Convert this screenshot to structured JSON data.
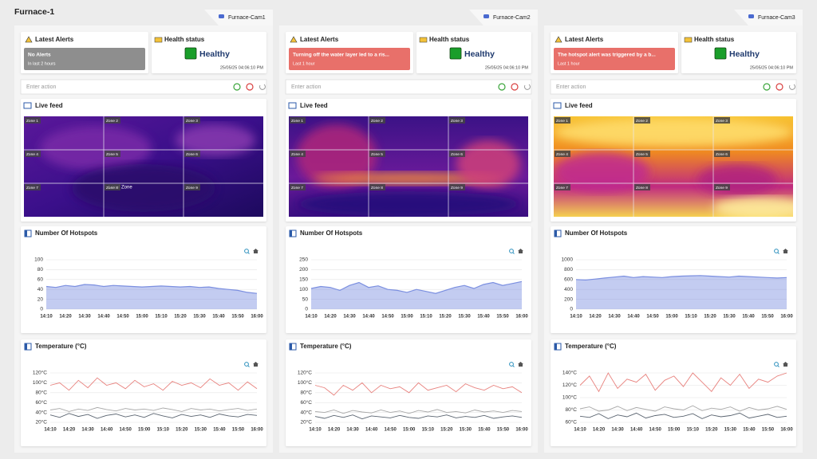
{
  "header": {
    "title": "Furnace-1"
  },
  "labels": {
    "latest_alerts": "Latest Alerts",
    "health_status": "Health status",
    "action_placeholder": "Enter action",
    "live_feed": "Live feed",
    "hotspots": "Number Of Hotspots",
    "temperature": "Temperature (°C)",
    "zones": [
      "Zone 1",
      "Zone 2",
      "Zone 3",
      "Zone 4",
      "Zone 5",
      "Zone 6",
      "Zone 7",
      "Zone 8",
      "Zone 9"
    ]
  },
  "cams": [
    {
      "name": "Furnace-Cam1",
      "alert": {
        "title": "No Alerts",
        "subtitle": "In last 2 hours",
        "color": "#8e8e8e"
      },
      "health": {
        "status": "Healthy",
        "timestamp": "25/05/25 04:06:10 PM",
        "color": "#1a9e2a"
      },
      "overlay": "Local Zone",
      "hotspots": {
        "type": "area",
        "categories": [
          "14:10",
          null,
          "14:20",
          null,
          "14:30",
          null,
          "14:40",
          null,
          "14:50",
          null,
          "15:00",
          null,
          "15:10",
          null,
          "15:20",
          null,
          "15:30",
          null,
          "15:40",
          null,
          "15:50",
          null,
          "16:00"
        ],
        "series": [
          {
            "color": "#7b8fe0",
            "values": [
              46,
              44,
              48,
              46,
              50,
              49,
              46,
              48,
              47,
              46,
              45,
              46,
              47,
              46,
              45,
              46,
              44,
              45,
              42,
              40,
              38,
              34,
              32
            ]
          }
        ],
        "ylim": [
          0,
          100
        ],
        "yticks": [
          0,
          20,
          40,
          60,
          80,
          100
        ],
        "grid": true
      },
      "temperature": {
        "type": "line",
        "categories": [
          "14:10",
          null,
          "14:20",
          null,
          "14:30",
          null,
          "14:40",
          null,
          "14:50",
          null,
          "15:00",
          null,
          "15:10",
          null,
          "15:20",
          null,
          "15:30",
          null,
          "15:40",
          null,
          "15:50",
          null,
          "16:00"
        ],
        "series": [
          {
            "color": "#e8827e",
            "values": [
              95,
              100,
              85,
              105,
              90,
              110,
              95,
              100,
              88,
              105,
              92,
              98,
              85,
              103,
              95,
              100,
              90,
              108,
              95,
              100,
              85,
              102,
              88
            ]
          },
          {
            "color": "#a8a8a8",
            "values": [
              45,
              48,
              42,
              47,
              44,
              50,
              46,
              43,
              48,
              45,
              47,
              44,
              49,
              46,
              42,
              48,
              45,
              47,
              43,
              46,
              48,
              44,
              47
            ]
          },
          {
            "color": "#5a6470",
            "values": [
              35,
              30,
              38,
              32,
              36,
              28,
              34,
              37,
              31,
              35,
              30,
              38,
              33,
              29,
              36,
              32,
              35,
              30,
              37,
              33,
              31,
              36,
              34
            ]
          }
        ],
        "ylim": [
          20,
          120
        ],
        "yticks": [
          {
            "value": 20,
            "label": "20°C"
          },
          {
            "value": 40,
            "label": "40°C"
          },
          {
            "value": 60,
            "label": "60°C"
          },
          {
            "value": 80,
            "label": "80°C"
          },
          {
            "value": 100,
            "label": "100°C"
          },
          {
            "value": 120,
            "label": "120°C"
          }
        ],
        "grid": true
      }
    },
    {
      "name": "Furnace-Cam2",
      "alert": {
        "title": "Turning off the water layer led to a ris...",
        "subtitle": "Last 1 hour",
        "color": "#e8706a"
      },
      "health": {
        "status": "Healthy",
        "timestamp": "25/05/25 04:06:10 PM",
        "color": "#1a9e2a"
      },
      "hotspots": {
        "type": "area",
        "categories": [
          "14:10",
          null,
          "14:20",
          null,
          "14:30",
          null,
          "14:40",
          null,
          "14:50",
          null,
          "15:00",
          null,
          "15:10",
          null,
          "15:20",
          null,
          "15:30",
          null,
          "15:40",
          null,
          "15:50",
          null,
          "16:00"
        ],
        "series": [
          {
            "color": "#7b8fe0",
            "values": [
              105,
              115,
              110,
              95,
              120,
              135,
              110,
              118,
              100,
              95,
              85,
              100,
              90,
              80,
              95,
              110,
              120,
              105,
              125,
              135,
              120,
              130,
              140
            ]
          }
        ],
        "ylim": [
          0,
          250
        ],
        "yticks": [
          0,
          50,
          100,
          150,
          200,
          250
        ],
        "grid": true
      },
      "temperature": {
        "type": "line",
        "categories": [
          "14:10",
          null,
          "14:20",
          null,
          "14:30",
          null,
          "14:40",
          null,
          "14:50",
          null,
          "15:00",
          null,
          "15:10",
          null,
          "15:20",
          null,
          "15:30",
          null,
          "15:40",
          null,
          "15:50",
          null,
          "16:00"
        ],
        "series": [
          {
            "color": "#e8827e",
            "values": [
              95,
              90,
              75,
              95,
              85,
              100,
              80,
              95,
              88,
              92,
              80,
              100,
              85,
              90,
              95,
              82,
              98,
              90,
              85,
              95,
              88,
              92,
              80
            ]
          },
          {
            "color": "#a8a8a8",
            "values": [
              42,
              40,
              45,
              38,
              44,
              41,
              39,
              45,
              40,
              43,
              38,
              44,
              41,
              46,
              40,
              42,
              39,
              45,
              41,
              43,
              40,
              44,
              42
            ]
          },
          {
            "color": "#5a6470",
            "values": [
              32,
              28,
              34,
              30,
              35,
              27,
              33,
              31,
              29,
              34,
              30,
              28,
              33,
              31,
              35,
              29,
              32,
              30,
              34,
              28,
              31,
              33,
              30
            ]
          }
        ],
        "ylim": [
          20,
          120
        ],
        "yticks": [
          {
            "value": 20,
            "label": "20°C"
          },
          {
            "value": 40,
            "label": "40°C"
          },
          {
            "value": 60,
            "label": "60°C"
          },
          {
            "value": 80,
            "label": "80°C"
          },
          {
            "value": 100,
            "label": "100°C"
          },
          {
            "value": 120,
            "label": "120°C"
          }
        ],
        "grid": true
      }
    },
    {
      "name": "Furnace-Cam3",
      "alert": {
        "title": "The hotspot alert was triggered by a b...",
        "subtitle": "Last 1 hour",
        "color": "#e8706a"
      },
      "health": {
        "status": "Healthy",
        "timestamp": "25/05/25 04:06:10 PM",
        "color": "#1a9e2a"
      },
      "hotspots": {
        "type": "area",
        "categories": [
          "14:10",
          null,
          "14:20",
          null,
          "14:30",
          null,
          "14:40",
          null,
          "14:50",
          null,
          "15:00",
          null,
          "15:10",
          null,
          "15:20",
          null,
          "15:30",
          null,
          "15:40",
          null,
          "15:50",
          null,
          "16:00"
        ],
        "series": [
          {
            "color": "#7b8fe0",
            "values": [
              600,
              590,
              610,
              630,
              650,
              670,
              640,
              660,
              650,
              640,
              660,
              670,
              675,
              680,
              670,
              660,
              650,
              670,
              660,
              650,
              640,
              630,
              640
            ]
          }
        ],
        "ylim": [
          0,
          1000
        ],
        "yticks": [
          0,
          200,
          400,
          600,
          800,
          1000
        ],
        "grid": true
      },
      "temperature": {
        "type": "line",
        "categories": [
          "14:10",
          null,
          "14:20",
          null,
          "14:30",
          null,
          "14:40",
          null,
          "14:50",
          null,
          "15:00",
          null,
          "15:10",
          null,
          "15:20",
          null,
          "15:30",
          null,
          "15:40",
          null,
          "15:50",
          null,
          "16:00"
        ],
        "series": [
          {
            "color": "#e8827e",
            "values": [
              120,
              135,
              110,
              140,
              115,
              130,
              125,
              138,
              112,
              128,
              135,
              118,
              140,
              125,
              110,
              132,
              120,
              138,
              115,
              130,
              125,
              135,
              140
            ]
          },
          {
            "color": "#a8a8a8",
            "values": [
              82,
              85,
              78,
              80,
              86,
              79,
              84,
              81,
              78,
              85,
              82,
              80,
              87,
              79,
              83,
              81,
              85,
              78,
              84,
              80,
              82,
              86,
              81
            ]
          },
          {
            "color": "#5a6470",
            "values": [
              70,
              68,
              74,
              66,
              72,
              69,
              75,
              67,
              71,
              73,
              68,
              70,
              74,
              66,
              72,
              69,
              71,
              75,
              67,
              70,
              73,
              68,
              70
            ]
          }
        ],
        "ylim": [
          60,
          140
        ],
        "yticks": [
          {
            "value": 60,
            "label": "60°C"
          },
          {
            "value": 80,
            "label": "80°C"
          },
          {
            "value": 100,
            "label": "100°C"
          },
          {
            "value": 120,
            "label": "120°C"
          },
          {
            "value": 140,
            "label": "140°C"
          }
        ],
        "grid": true
      }
    }
  ]
}
